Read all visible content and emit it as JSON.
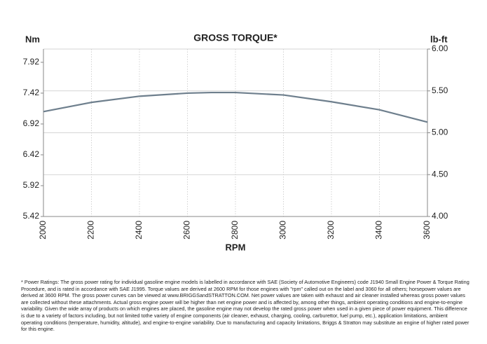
{
  "chart_data": {
    "type": "line",
    "title": "GROSS TORQUE*",
    "y_label": "Nm",
    "y2_label": "lb-ft",
    "x_label": "RPM",
    "x": [
      2000,
      2200,
      2400,
      2600,
      2700,
      2800,
      3000,
      3200,
      3400,
      3600
    ],
    "series": [
      {
        "name": "Gross torque",
        "color": "#6e7f8d",
        "values": [
          7.12,
          7.27,
          7.37,
          7.42,
          7.43,
          7.43,
          7.39,
          7.28,
          7.15,
          6.95
        ]
      }
    ],
    "xlim": [
      2000,
      3600
    ],
    "xticks": [
      2000,
      2200,
      2400,
      2600,
      2800,
      3000,
      3200,
      3400,
      3600
    ],
    "ylim": [
      5.42,
      8.135
    ],
    "yticks": [
      5.42,
      5.92,
      6.42,
      6.92,
      7.42,
      7.92
    ],
    "y2lim": [
      4,
      6
    ],
    "y2ticks": [
      {
        "value": 4,
        "label": "4.00"
      },
      {
        "value": 4.5,
        "label": "4.50"
      },
      {
        "value": 5,
        "label": "5.00"
      },
      {
        "value": 5.5,
        "label": "5.50"
      },
      {
        "value": 6,
        "label": "6.00"
      }
    ],
    "grid": true,
    "footnote": "* Power Ratings: The gross power rating for individual gasoline engine models is labelled in accordance with SAE (Society of Automotive Engineers) code J1940 Small Engine Power & Torque Rating Procedure, and is rated in accordance with SAE J1995. Torque values are derived at 2600 RPM for those engines with \"rpm\" called out on the label and 3060 for all others; horsepower values are derived at 3600 RPM. The gross power curves can be viewed at www.BRIGGSandSTRATTON.COM. Net power values are taken with exhaust and air cleaner installed whereas gross power values are collected without these attachments. Actual gross engine power will be higher than net engine power and is affected by, among other things, ambient operating conditions and engine-to-engine variability. Given the wide array of products on which engines are placed, the gasoline engine may not develop the rated gross power when used in a given piece of power equipment. This difference is due to a variety of factors including, but not limited tothe variety of engine components (air cleaner, exhaust, charging, cooling, carburettor, fuel pump, etc.), application limitations, ambient operating conditions (temperature, humidity, altitude), and engine-to-engine variability. Due to manufacturing and capacity limitations, Briggs & Stratton may substitute an engine of higher rated power for this engine."
  }
}
